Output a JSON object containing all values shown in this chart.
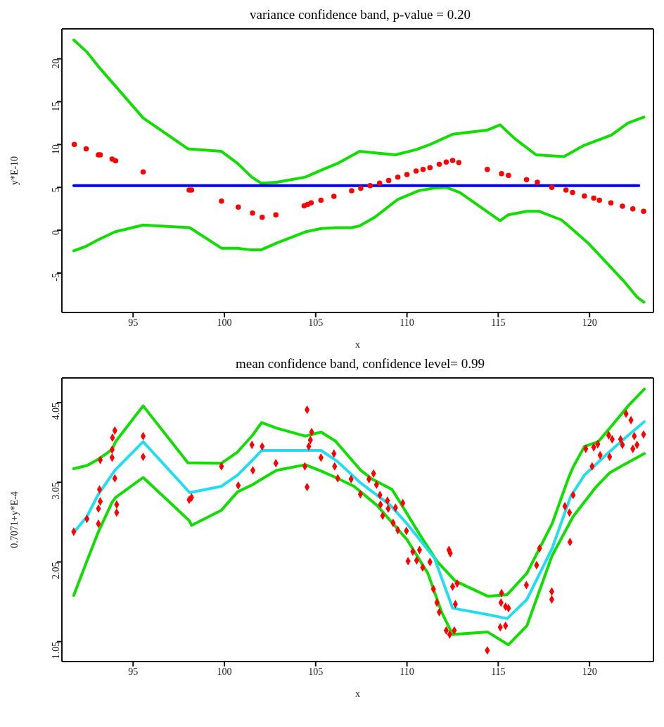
{
  "chart_data": [
    {
      "type": "line",
      "title": "variance confidence band,  p-value = 0.20",
      "xlabel": "x",
      "ylabel": "y*E-10",
      "xlim": [
        91.1,
        123.5
      ],
      "xticks": [
        95,
        100,
        105,
        110,
        115,
        120
      ],
      "ylim": [
        -9.6,
        23.5
      ],
      "yticks": [
        -5,
        0,
        5,
        10,
        15,
        20
      ],
      "series": [
        {
          "color": "#11dd00",
          "x": [
            91.75,
            92.47,
            93.1,
            94.0,
            95.55,
            98.0,
            99.84,
            100.72,
            101.5,
            102.0,
            102.86,
            104.43,
            105.3,
            106.2,
            107.4,
            108.36,
            109.37,
            110.5,
            111.26,
            112.5,
            114.42,
            115.1,
            115.9,
            117.07,
            118.6,
            119.7,
            121.2,
            122.1,
            122.98
          ],
          "values": [
            22.2,
            20.8,
            19.1,
            16.9,
            13.1,
            9.5,
            9.2,
            7.8,
            6.2,
            5.5,
            5.6,
            6.2,
            7.0,
            7.8,
            9.2,
            9.0,
            8.8,
            9.4,
            10.0,
            11.2,
            11.7,
            12.3,
            10.7,
            8.8,
            8.6,
            9.9,
            11.1,
            12.5,
            13.2
          ]
        },
        {
          "color": "#11dd00",
          "x": [
            91.75,
            92.4,
            93.1,
            94.0,
            95.55,
            98.1,
            99.84,
            100.7,
            101.5,
            102.0,
            102.86,
            104.43,
            105.3,
            106.1,
            106.97,
            107.4,
            108.23,
            109.5,
            110.63,
            111.4,
            112.15,
            112.9,
            115.1,
            115.55,
            116.56,
            117.25,
            118.46,
            118.96,
            119.97,
            120.98,
            121.9,
            122.6,
            122.98
          ],
          "values": [
            -2.4,
            -1.9,
            -1.1,
            -0.2,
            0.6,
            0.3,
            -2.1,
            -2.1,
            -2.3,
            -2.3,
            -1.5,
            -0.2,
            0.2,
            0.3,
            0.3,
            0.5,
            1.5,
            3.6,
            4.6,
            4.9,
            5.0,
            4.4,
            1.1,
            1.8,
            2.2,
            2.2,
            1.2,
            0.3,
            -1.6,
            -3.9,
            -6.0,
            -7.8,
            -8.4
          ]
        },
        {
          "type": "scatter",
          "color": "#ff0000",
          "marker": "circle",
          "x": [
            91.78,
            92.43,
            93.1,
            93.2,
            93.85,
            94.04,
            95.55,
            98.07,
            98.2,
            99.84,
            100.76,
            101.54,
            102.07,
            102.82,
            104.37,
            104.56,
            104.75,
            105.29,
            106.0,
            106.97,
            107.47,
            107.98,
            108.5,
            109.0,
            109.5,
            110.0,
            110.5,
            110.88,
            111.26,
            111.77,
            112.15,
            112.5,
            112.84,
            114.4,
            115.18,
            115.56,
            116.55,
            117.14,
            117.93,
            118.71,
            119.07,
            119.72,
            120.23,
            120.54,
            121.17,
            121.8,
            122.37,
            122.96
          ],
          "values": [
            10.0,
            9.5,
            8.8,
            8.8,
            8.3,
            8.1,
            6.8,
            4.7,
            4.7,
            3.4,
            2.7,
            2.0,
            1.5,
            1.8,
            2.85,
            3.0,
            3.2,
            3.5,
            3.95,
            4.6,
            4.9,
            5.2,
            5.5,
            5.8,
            6.2,
            6.5,
            6.9,
            7.1,
            7.3,
            7.7,
            7.95,
            8.15,
            7.9,
            7.1,
            6.6,
            6.4,
            5.9,
            5.6,
            5.0,
            4.7,
            4.4,
            4.0,
            3.75,
            3.5,
            3.2,
            2.8,
            2.5,
            2.2
          ]
        },
        {
          "color": "#0000ee",
          "x": [
            91.75,
            122.7
          ],
          "values": [
            5.2,
            5.2
          ]
        }
      ]
    },
    {
      "type": "line",
      "title": "mean confidence band, confidence level= 0.99",
      "xlabel": "x",
      "ylabel": "0.7071+y*E-4",
      "xlim": [
        91.1,
        123.5
      ],
      "xticks": [
        95,
        100,
        105,
        110,
        115,
        120
      ],
      "ylim": [
        0.8,
        4.36
      ],
      "yticks": [
        1.05,
        2.05,
        3.05,
        4.05
      ],
      "series": [
        {
          "color": "#11dd00",
          "x": [
            91.75,
            92.47,
            93.1,
            93.85,
            94.04,
            95.55,
            98.0,
            99.84,
            100.72,
            101.54,
            102.04,
            102.86,
            104.43,
            105.3,
            106.07,
            107.47,
            108.1,
            109.18,
            109.62,
            110.63,
            111.64,
            112.65,
            114.42,
            115.49,
            116.57,
            117.95,
            118.84,
            119.1,
            119.72,
            120.48,
            121.11,
            122.12,
            123.0
          ],
          "values": [
            3.22,
            3.26,
            3.34,
            3.46,
            3.56,
            4.01,
            3.295,
            3.29,
            3.43,
            3.64,
            3.8,
            3.73,
            3.63,
            3.68,
            3.57,
            3.2,
            3.09,
            2.96,
            2.8,
            2.42,
            2.06,
            1.81,
            1.62,
            1.64,
            1.91,
            2.53,
            3.1,
            3.24,
            3.5,
            3.56,
            3.73,
            4.01,
            4.22
          ]
        },
        {
          "color": "#11dd00",
          "x": [
            91.75,
            92.4,
            93.1,
            93.85,
            94.04,
            95.55,
            98.07,
            98.2,
            99.84,
            100.72,
            101.54,
            102.04,
            102.86,
            104.43,
            105.3,
            106.1,
            107.1,
            108.36,
            110.0,
            111.14,
            111.9,
            112.5,
            114.42,
            115.56,
            116.57,
            117.95,
            119.1,
            120.35,
            121.11,
            121.87,
            123.0
          ],
          "values": [
            1.63,
            2.02,
            2.43,
            2.8,
            2.86,
            3.11,
            2.57,
            2.51,
            2.7,
            2.93,
            3.02,
            3.09,
            3.2,
            3.27,
            3.19,
            3.11,
            3.0,
            2.76,
            2.33,
            1.91,
            1.42,
            1.14,
            1.17,
            1.01,
            1.25,
            2.13,
            2.62,
            2.99,
            3.17,
            3.27,
            3.41
          ]
        },
        {
          "type": "scatter",
          "color": "#ff0000",
          "marker": "diamond",
          "x": [
            91.75,
            92.47,
            93.1,
            93.1,
            93.16,
            93.2,
            93.2,
            93.85,
            93.87,
            94.0,
            93.85,
            94.0,
            94.1,
            94.1,
            95.55,
            95.55,
            98.07,
            98.2,
            99.84,
            100.76,
            101.51,
            101.56,
            102.07,
            102.82,
            104.53,
            104.53,
            104.41,
            104.62,
            104.71,
            104.78,
            105.29,
            106.0,
            106.04,
            106.21,
            106.94,
            107.45,
            107.92,
            108.17,
            108.33,
            108.52,
            108.55,
            108.67,
            108.93,
            108.97,
            109.24,
            109.37,
            109.5,
            109.77,
            109.97,
            110.06,
            110.32,
            110.53,
            110.69,
            110.86,
            111.26,
            111.45,
            111.64,
            111.77,
            112.15,
            112.34,
            112.59,
            112.3,
            112.37,
            112.5,
            112.65,
            112.75,
            114.4,
            115.18,
            115.15,
            115.4,
            115.56,
            115.11,
            115.4,
            116.54,
            117.1,
            117.26,
            117.93,
            117.93,
            118.65,
            118.9,
            118.93,
            119.1,
            119.79,
            120.23,
            120.14,
            120.45,
            120.58,
            121.05,
            121.1,
            121.24,
            121.7,
            121.8,
            122.0,
            122.27,
            122.37,
            122.45,
            122.6,
            122.96
          ],
          "values": [
            2.43,
            2.59,
            2.53,
            2.72,
            2.96,
            2.81,
            3.33,
            3.36,
            3.61,
            3.7,
            3.46,
            3.1,
            2.77,
            2.67,
            3.63,
            3.37,
            2.83,
            2.86,
            3.25,
            3.01,
            3.52,
            3.2,
            3.5,
            3.29,
            3.96,
            2.99,
            3.25,
            3.5,
            3.58,
            3.68,
            3.36,
            3.41,
            3.25,
            3.1,
            3.09,
            2.9,
            3.09,
            3.16,
            3.02,
            2.89,
            2.77,
            2.63,
            2.82,
            2.72,
            2.54,
            2.73,
            2.45,
            2.79,
            2.44,
            2.06,
            2.18,
            2.07,
            2.2,
            1.98,
            2.05,
            1.71,
            1.54,
            1.42,
            1.19,
            1.14,
            1.19,
            2.2,
            2.16,
            1.74,
            1.52,
            1.78,
            0.94,
            1.66,
            1.54,
            1.49,
            1.47,
            1.23,
            1.25,
            1.76,
            2.01,
            2.22,
            1.68,
            1.58,
            2.75,
            2.67,
            2.3,
            2.89,
            3.47,
            3.49,
            3.25,
            3.53,
            3.39,
            3.64,
            3.37,
            3.59,
            3.59,
            3.52,
            3.91,
            3.83,
            3.47,
            3.63,
            3.52,
            3.65
          ]
        },
        {
          "color": "#22ddf0",
          "x": [
            91.75,
            92.47,
            93.1,
            94.0,
            95.55,
            98.1,
            99.84,
            100.72,
            101.54,
            102.04,
            104.43,
            105.3,
            106.2,
            107.47,
            109.1,
            110.0,
            111.5,
            112.5,
            114.42,
            115.49,
            116.57,
            117.95,
            118.96,
            119.72,
            120.98,
            122.12,
            123.0
          ],
          "values": [
            2.42,
            2.62,
            2.9,
            3.2,
            3.56,
            2.92,
            3.0,
            3.14,
            3.33,
            3.45,
            3.45,
            3.45,
            3.31,
            3.04,
            2.76,
            2.53,
            2.1,
            1.47,
            1.39,
            1.34,
            1.58,
            2.22,
            2.87,
            3.14,
            3.41,
            3.64,
            3.81
          ]
        }
      ]
    }
  ]
}
